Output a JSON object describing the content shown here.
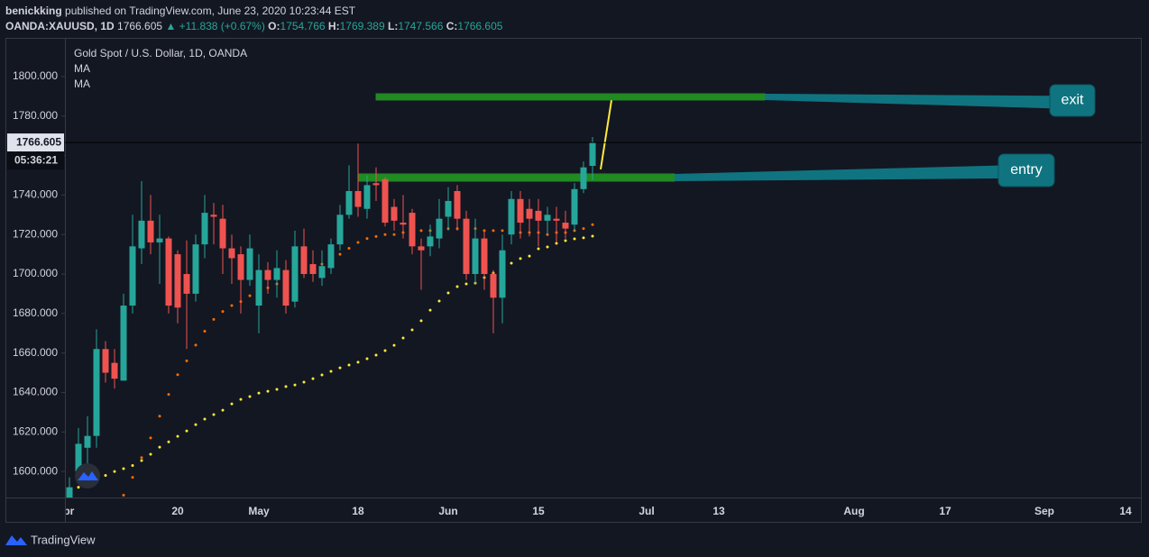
{
  "header": {
    "author": "benickking",
    "published": "published on TradingView.com, June 23, 2020 10:23:44 EST",
    "symbol": "OANDA:XAUUSD, 1D",
    "change": "▲ +11.838 (+0.67%)",
    "o": "O:",
    "h": "H:",
    "l": "L:",
    "c": "C:"
  },
  "chart_data": {
    "type": "candlestick",
    "title": "Gold Spot / U.S. Dollar, 1D, OANDA",
    "up_color": "#26a69a",
    "down_color": "#ef5350",
    "candles": [
      {
        "open": 1583,
        "high": 1597,
        "low": 1578,
        "close": 1592
      },
      {
        "open": 1600,
        "high": 1622,
        "low": 1595,
        "close": 1614
      },
      {
        "open": 1612,
        "high": 1628,
        "low": 1603,
        "close": 1618
      },
      {
        "open": 1618,
        "high": 1672,
        "low": 1612,
        "close": 1662
      },
      {
        "open": 1662,
        "high": 1666,
        "low": 1645,
        "close": 1650
      },
      {
        "open": 1655,
        "high": 1662,
        "low": 1642,
        "close": 1647
      },
      {
        "open": 1646,
        "high": 1690,
        "low": 1646,
        "close": 1684
      },
      {
        "open": 1684,
        "high": 1730,
        "low": 1680,
        "close": 1714
      },
      {
        "open": 1713,
        "high": 1747,
        "low": 1705,
        "close": 1727
      },
      {
        "open": 1727,
        "high": 1740,
        "low": 1710,
        "close": 1716
      },
      {
        "open": 1716,
        "high": 1730,
        "low": 1695,
        "close": 1718
      },
      {
        "open": 1718,
        "high": 1719,
        "low": 1680,
        "close": 1684
      },
      {
        "open": 1710,
        "high": 1712,
        "low": 1675,
        "close": 1683
      },
      {
        "open": 1700,
        "high": 1717,
        "low": 1662,
        "close": 1690
      },
      {
        "open": 1690,
        "high": 1720,
        "low": 1686,
        "close": 1715
      },
      {
        "open": 1715,
        "high": 1740,
        "low": 1708,
        "close": 1731
      },
      {
        "open": 1730,
        "high": 1736,
        "low": 1715,
        "close": 1729
      },
      {
        "open": 1728,
        "high": 1735,
        "low": 1700,
        "close": 1713
      },
      {
        "open": 1713,
        "high": 1720,
        "low": 1695,
        "close": 1708
      },
      {
        "open": 1710,
        "high": 1714,
        "low": 1680,
        "close": 1697
      },
      {
        "open": 1697,
        "high": 1720,
        "low": 1694,
        "close": 1713
      },
      {
        "open": 1684,
        "high": 1710,
        "low": 1670,
        "close": 1702
      },
      {
        "open": 1702,
        "high": 1706,
        "low": 1690,
        "close": 1697
      },
      {
        "open": 1697,
        "high": 1712,
        "low": 1688,
        "close": 1703
      },
      {
        "open": 1702,
        "high": 1707,
        "low": 1680,
        "close": 1684
      },
      {
        "open": 1686,
        "high": 1722,
        "low": 1683,
        "close": 1714
      },
      {
        "open": 1714,
        "high": 1723,
        "low": 1698,
        "close": 1700
      },
      {
        "open": 1705,
        "high": 1712,
        "low": 1696,
        "close": 1700
      },
      {
        "open": 1698,
        "high": 1712,
        "low": 1694,
        "close": 1704
      },
      {
        "open": 1703,
        "high": 1718,
        "low": 1700,
        "close": 1715
      },
      {
        "open": 1715,
        "high": 1735,
        "low": 1712,
        "close": 1730
      },
      {
        "open": 1730,
        "high": 1755,
        "low": 1728,
        "close": 1742
      },
      {
        "open": 1742,
        "high": 1766,
        "low": 1729,
        "close": 1734
      },
      {
        "open": 1733,
        "high": 1750,
        "low": 1728,
        "close": 1745
      },
      {
        "open": 1746,
        "high": 1754,
        "low": 1737,
        "close": 1745
      },
      {
        "open": 1748,
        "high": 1749,
        "low": 1724,
        "close": 1726
      },
      {
        "open": 1734,
        "high": 1738,
        "low": 1722,
        "close": 1727
      },
      {
        "open": 1726,
        "high": 1740,
        "low": 1718,
        "close": 1725
      },
      {
        "open": 1731,
        "high": 1733,
        "low": 1710,
        "close": 1714
      },
      {
        "open": 1714,
        "high": 1718,
        "low": 1692,
        "close": 1712
      },
      {
        "open": 1714,
        "high": 1725,
        "low": 1709,
        "close": 1719
      },
      {
        "open": 1718,
        "high": 1738,
        "low": 1713,
        "close": 1728
      },
      {
        "open": 1729,
        "high": 1744,
        "low": 1722,
        "close": 1737
      },
      {
        "open": 1742,
        "high": 1745,
        "low": 1722,
        "close": 1728
      },
      {
        "open": 1728,
        "high": 1732,
        "low": 1697,
        "close": 1700
      },
      {
        "open": 1700,
        "high": 1728,
        "low": 1695,
        "close": 1718
      },
      {
        "open": 1718,
        "high": 1722,
        "low": 1692,
        "close": 1700
      },
      {
        "open": 1700,
        "high": 1702,
        "low": 1670,
        "close": 1688
      },
      {
        "open": 1688,
        "high": 1720,
        "low": 1675,
        "close": 1712
      },
      {
        "open": 1720,
        "high": 1742,
        "low": 1715,
        "close": 1738
      },
      {
        "open": 1738,
        "high": 1742,
        "low": 1718,
        "close": 1726
      },
      {
        "open": 1733,
        "high": 1738,
        "low": 1719,
        "close": 1728
      },
      {
        "open": 1732,
        "high": 1738,
        "low": 1714,
        "close": 1727
      },
      {
        "open": 1727,
        "high": 1734,
        "low": 1720,
        "close": 1730
      },
      {
        "open": 1728,
        "high": 1734,
        "low": 1716,
        "close": 1727
      },
      {
        "open": 1726,
        "high": 1732,
        "low": 1718,
        "close": 1723
      },
      {
        "open": 1725,
        "high": 1746,
        "low": 1722,
        "close": 1743
      },
      {
        "open": 1743,
        "high": 1757,
        "low": 1741,
        "close": 1754
      },
      {
        "open": 1754.766,
        "high": 1769.389,
        "low": 1747.566,
        "close": 1766.605
      }
    ],
    "series": [
      {
        "name": "MA",
        "color": "#ff6d00",
        "values": [
          null,
          null,
          null,
          null,
          null,
          null,
          1588,
          1597,
          1607,
          1617,
          1628,
          1639,
          1649,
          1656,
          1664,
          1671,
          1677,
          1681,
          1684,
          1686,
          1689,
          1691,
          1693,
          1695,
          1697,
          1698,
          1701,
          1703,
          1705,
          1707,
          1710,
          1713,
          1716,
          1718,
          1719,
          1720,
          1720,
          1721,
          1721,
          1722,
          1722,
          1722,
          1723,
          1723,
          1723,
          1723,
          1722,
          1722,
          1722,
          1722,
          1721,
          1721,
          1721,
          1720,
          1721,
          1721,
          1722,
          1723,
          1725
        ]
      },
      {
        "name": "MA",
        "color": "#ffeb3b",
        "values": [
          null,
          1592,
          1594.5,
          1596,
          1598,
          1600,
          1601.4,
          1603,
          1605.5,
          1608.7,
          1612.3,
          1615,
          1617.8,
          1620.5,
          1623.7,
          1626.5,
          1628.8,
          1631,
          1634.2,
          1636.5,
          1637.9,
          1639.7,
          1640.6,
          1641.6,
          1643,
          1643.8,
          1645.2,
          1647,
          1648.9,
          1650.7,
          1652.5,
          1653.9,
          1655.3,
          1657.1,
          1658.9,
          1661.2,
          1663.9,
          1667.6,
          1671.7,
          1676.3,
          1681.7,
          1686.3,
          1690.4,
          1693.6,
          1695,
          1695.4,
          1698.2,
          1700.5,
          1703.2,
          1705.5,
          1707.8,
          1709.1,
          1712.8,
          1713.7,
          1715.5,
          1716.9,
          1717.8,
          1718.3,
          1719.2
        ]
      }
    ],
    "ylim": [
      1586.8,
      1819.6
    ],
    "yticks": [
      {
        "value": 1600,
        "label": "1600.000"
      },
      {
        "value": 1620,
        "label": "1620.000"
      },
      {
        "value": 1640,
        "label": "1640.000"
      },
      {
        "value": 1660,
        "label": "1660.000"
      },
      {
        "value": 1680,
        "label": "1680.000"
      },
      {
        "value": 1700,
        "label": "1700.000"
      },
      {
        "value": 1720,
        "label": "1720.000"
      },
      {
        "value": 1740,
        "label": "1740.000"
      },
      {
        "value": 1760,
        "label": "1760.000"
      },
      {
        "value": 1780,
        "label": "1780.000"
      },
      {
        "value": 1800,
        "label": "1800.000"
      }
    ],
    "x_labels": [
      "Apr",
      "20",
      "May",
      "18",
      "Jun",
      "15",
      "Jul",
      "13",
      "Aug",
      "17",
      "Sep",
      "14"
    ],
    "countdown": "05:36:21",
    "annotations": [
      {
        "label": "exit",
        "top": 1791.3,
        "bottom": 1788.1,
        "color": "#1e8c1e",
        "callout_color": "#0f7480"
      },
      {
        "label": "entry",
        "top": 1750.7,
        "bottom": 1747.0,
        "color": "#1e8c1e",
        "callout_color": "#0f7480"
      }
    ],
    "trend_line": {
      "start": 1753,
      "end": 1788,
      "color": "#ffeb3b"
    }
  },
  "footer": {
    "brand": "TradingView"
  }
}
